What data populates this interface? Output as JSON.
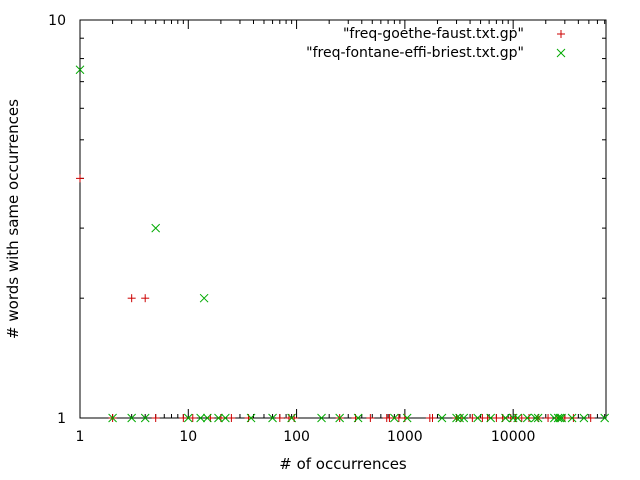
{
  "chart_data": {
    "type": "scatter",
    "xlabel": "# of occurrences",
    "ylabel": "# words with same occurrences",
    "x_scale": "log",
    "y_scale": "log",
    "xlim": [
      1,
      72000
    ],
    "ylim": [
      1,
      10
    ],
    "x_tick_labels": [
      "1",
      "10",
      "100",
      "1000",
      "10000"
    ],
    "y_tick_labels": [
      "1",
      "10"
    ],
    "grid": false,
    "legend_position": "top-right",
    "series": [
      {
        "name": "\"freq-goethe-faust.txt.gp\"",
        "marker": "plus",
        "color": "#cc0000",
        "points": [
          [
            1,
            4
          ],
          [
            3,
            2
          ],
          [
            4,
            2
          ],
          [
            2,
            1
          ],
          [
            5,
            1
          ],
          [
            9,
            1
          ],
          [
            11,
            1
          ],
          [
            16,
            1
          ],
          [
            20,
            1
          ],
          [
            25,
            1
          ],
          [
            36,
            1
          ],
          [
            70,
            1
          ],
          [
            85,
            1
          ],
          [
            95,
            1
          ],
          [
            250,
            1
          ],
          [
            350,
            1
          ],
          [
            480,
            1
          ],
          [
            680,
            1
          ],
          [
            720,
            1
          ],
          [
            880,
            1
          ],
          [
            1000,
            1
          ],
          [
            1700,
            1
          ],
          [
            1800,
            1
          ],
          [
            3000,
            1
          ],
          [
            3300,
            1
          ],
          [
            4200,
            1
          ],
          [
            5200,
            1
          ],
          [
            5800,
            1
          ],
          [
            7000,
            1
          ],
          [
            8000,
            1
          ],
          [
            9500,
            1
          ],
          [
            10500,
            1
          ],
          [
            12000,
            1
          ],
          [
            14000,
            1
          ],
          [
            17000,
            1
          ],
          [
            21000,
            1
          ],
          [
            26000,
            1
          ],
          [
            30000,
            1
          ],
          [
            36000,
            1
          ],
          [
            52000,
            1
          ]
        ]
      },
      {
        "name": "\"freq-fontane-effi-briest.txt.gp\"",
        "marker": "cross",
        "color": "#00aa00",
        "points": [
          [
            1,
            7.5
          ],
          [
            5,
            3
          ],
          [
            14,
            2
          ],
          [
            2,
            1
          ],
          [
            3,
            1
          ],
          [
            4,
            1
          ],
          [
            10,
            1
          ],
          [
            13,
            1
          ],
          [
            15,
            1
          ],
          [
            19,
            1
          ],
          [
            22,
            1
          ],
          [
            38,
            1
          ],
          [
            60,
            1
          ],
          [
            90,
            1
          ],
          [
            170,
            1
          ],
          [
            250,
            1
          ],
          [
            370,
            1
          ],
          [
            800,
            1
          ],
          [
            1050,
            1
          ],
          [
            2200,
            1
          ],
          [
            3000,
            1
          ],
          [
            3200,
            1
          ],
          [
            3500,
            1
          ],
          [
            4700,
            1
          ],
          [
            6200,
            1
          ],
          [
            8500,
            1
          ],
          [
            10000,
            1
          ],
          [
            11000,
            1
          ],
          [
            13500,
            1
          ],
          [
            16000,
            1
          ],
          [
            17000,
            1
          ],
          [
            24000,
            1
          ],
          [
            26000,
            1
          ],
          [
            27000,
            1
          ],
          [
            28000,
            1
          ],
          [
            35000,
            1
          ],
          [
            45000,
            1
          ],
          [
            70000,
            1
          ]
        ]
      }
    ]
  }
}
